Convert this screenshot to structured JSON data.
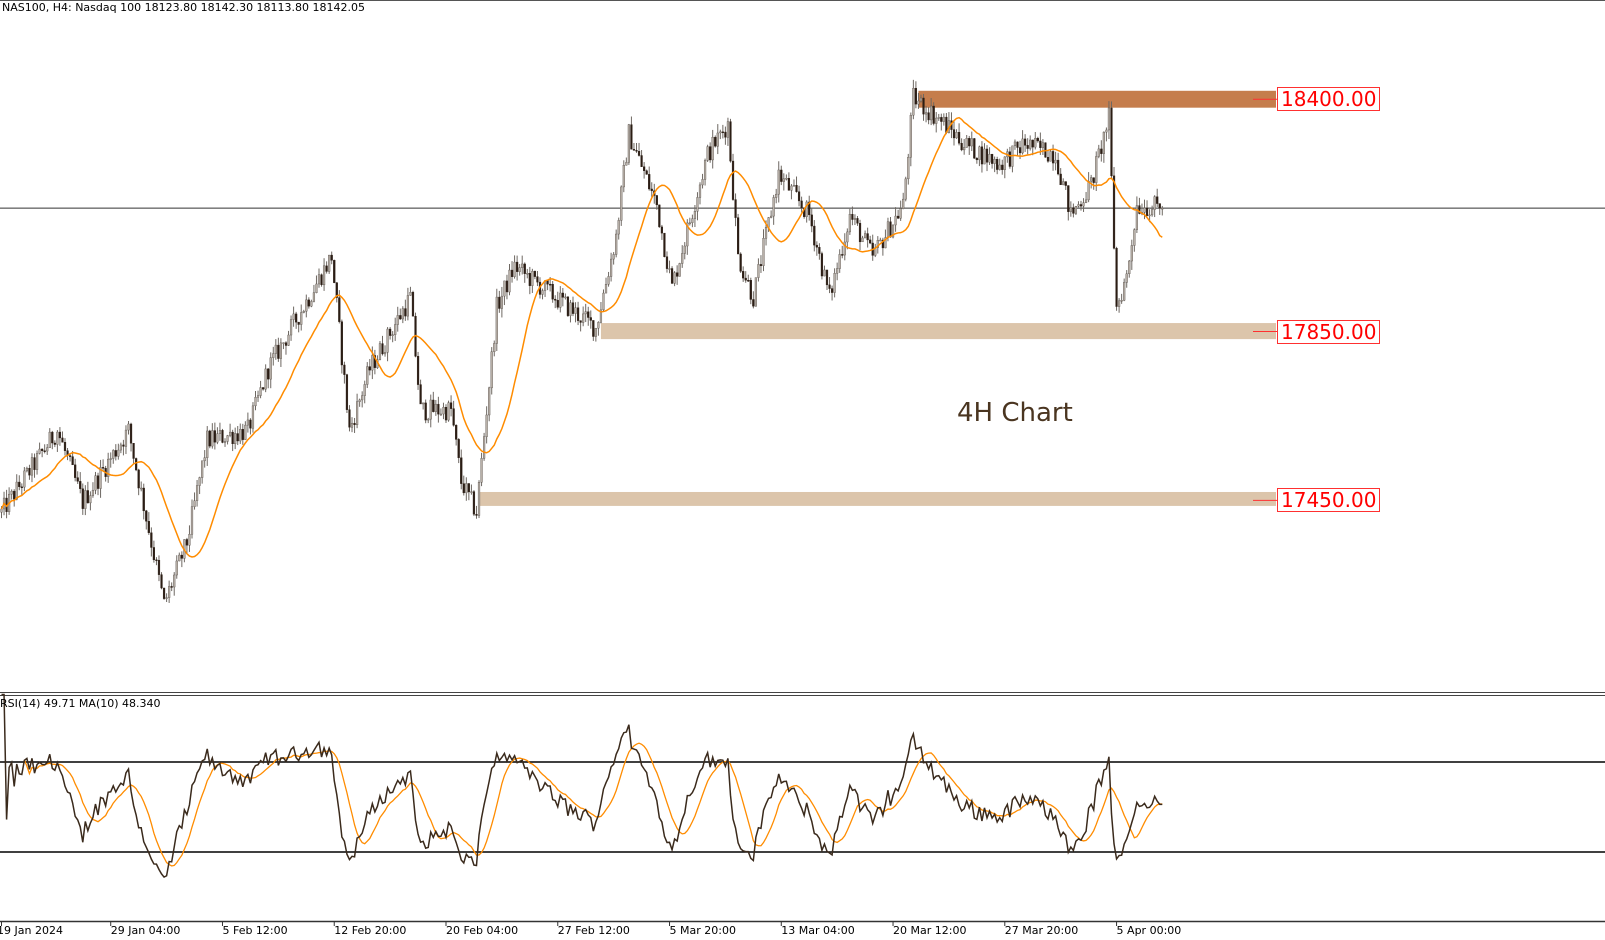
{
  "header": {
    "symbol_line": "NAS100, H4:  Nasdaq 100  18123.80 18142.30 18113.80 18142.05"
  },
  "rsi_header": "RSI(14) 49.71 MA(10) 48.340",
  "annotation": "4H Chart",
  "colors": {
    "ma": "#ff8c00",
    "bull_body": "#b8b0a8",
    "bear_body": "#2b1d14",
    "wick": "#6e6862",
    "resistance_zone": "#c57d4c",
    "support_zone": "#dcc5ab",
    "level_label": "#ff0000",
    "rsi_line": "#3a2a1c"
  },
  "chart_data": {
    "type": "candlestick",
    "title": "",
    "symbol": "NAS100",
    "timeframe": "H4",
    "ylim": [
      16994,
      18635
    ],
    "x_unit": "bar",
    "price_path": [
      [
        0,
        17422
      ],
      [
        22,
        17616
      ],
      [
        32,
        17446
      ],
      [
        50,
        17616
      ],
      [
        64,
        17204
      ],
      [
        73,
        17350
      ],
      [
        81,
        17592
      ],
      [
        97,
        17616
      ],
      [
        105,
        17762
      ],
      [
        121,
        17931
      ],
      [
        130,
        18028
      ],
      [
        137,
        17616
      ],
      [
        145,
        17762
      ],
      [
        161,
        17931
      ],
      [
        165,
        17664
      ],
      [
        177,
        17664
      ],
      [
        181,
        17494
      ],
      [
        187,
        17422
      ],
      [
        195,
        17907
      ],
      [
        202,
        18004
      ],
      [
        218,
        17931
      ],
      [
        234,
        17858
      ],
      [
        242,
        18076
      ],
      [
        247,
        18319
      ],
      [
        258,
        18149
      ],
      [
        264,
        17955
      ],
      [
        278,
        18270
      ],
      [
        286,
        18343
      ],
      [
        290,
        18028
      ],
      [
        296,
        17931
      ],
      [
        306,
        18222
      ],
      [
        318,
        18125
      ],
      [
        326,
        17931
      ],
      [
        334,
        18125
      ],
      [
        343,
        18028
      ],
      [
        355,
        18149
      ],
      [
        359,
        18404
      ],
      [
        371,
        18343
      ],
      [
        379,
        18295
      ],
      [
        393,
        18246
      ],
      [
        403,
        18295
      ],
      [
        415,
        18270
      ],
      [
        421,
        18125
      ],
      [
        429,
        18198
      ],
      [
        436,
        18356
      ],
      [
        439,
        17907
      ],
      [
        443,
        17980
      ],
      [
        447,
        18149
      ],
      [
        457,
        18142.05
      ]
    ],
    "last_price": 18142.05,
    "moving_average": {
      "period": 20
    },
    "zones": [
      {
        "label": "18400.00",
        "price": 18400,
        "top": 18420,
        "bottom": 18380,
        "start_bar": 361,
        "kind": "resistance"
      },
      {
        "label": "17850.00",
        "price": 17850,
        "top": 17870,
        "bottom": 17832,
        "start_bar": 236,
        "kind": "support"
      },
      {
        "label": "17450.00",
        "price": 17450,
        "top": 17470,
        "bottom": 17437,
        "start_bar": 188,
        "kind": "support"
      }
    ],
    "x_ticks": [
      {
        "bar": 0,
        "label": "19 Jan 2024"
      },
      {
        "bar": 43,
        "label": "29 Jan 04:00"
      },
      {
        "bar": 87,
        "label": "5 Feb 12:00"
      },
      {
        "bar": 131,
        "label": "12 Feb 20:00"
      },
      {
        "bar": 175,
        "label": "20 Feb 04:00"
      },
      {
        "bar": 219,
        "label": "27 Feb 12:00"
      },
      {
        "bar": 263,
        "label": "5 Mar 20:00"
      },
      {
        "bar": 307,
        "label": "13 Mar 04:00"
      },
      {
        "bar": 351,
        "label": "20 Mar 12:00"
      },
      {
        "bar": 395,
        "label": "27 Mar 20:00"
      },
      {
        "bar": 439,
        "label": "5 Apr 00:00"
      }
    ],
    "rsi": {
      "period": 14,
      "ma_period": 10,
      "value": 49.71,
      "ma_value": 48.34,
      "levels": [
        30,
        70
      ],
      "ylim": [
        0,
        100
      ]
    }
  }
}
